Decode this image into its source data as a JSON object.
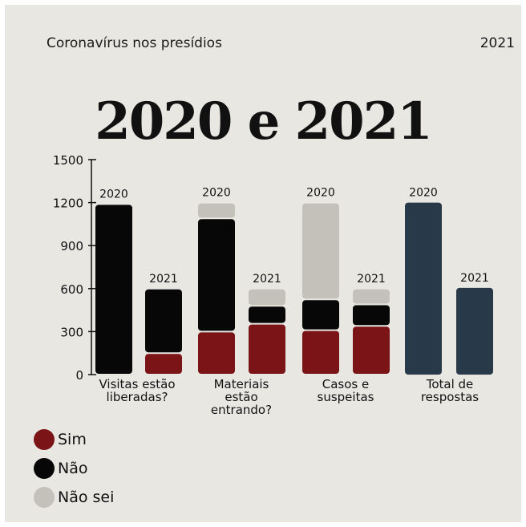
{
  "header": {
    "title": "Coronavírus nos presídios",
    "year": "2021",
    "big_title": "2020 e 2021"
  },
  "legend": [
    {
      "label": "Sim",
      "color": "#7b1416"
    },
    {
      "label": "Não",
      "color": "#070707"
    },
    {
      "label": "Não sei",
      "color": "#c4c0ba"
    }
  ],
  "chart_data": {
    "type": "bar",
    "stacked": true,
    "title": "2020 e 2021",
    "ylim": [
      0,
      1500
    ],
    "yticks": [
      0,
      300,
      600,
      900,
      1200,
      1500
    ],
    "categories": [
      "Visitas estão liberadas?",
      "Materiais estão entrando?",
      "Casos e suspeitas",
      "Total de respostas"
    ],
    "category_lines": [
      [
        "Visitas estão",
        "liberadas?"
      ],
      [
        "Materiais",
        "estão",
        "entrando?"
      ],
      [
        "Casos e",
        "suspeitas"
      ],
      [
        "Total de",
        "respostas"
      ]
    ],
    "bars": [
      {
        "category": "Visitas estão liberadas?",
        "year": "2020",
        "segments": {
          "Sim": 0,
          "Não": 1190,
          "Não sei": 0
        }
      },
      {
        "category": "Visitas estão liberadas?",
        "year": "2021",
        "segments": {
          "Sim": 150,
          "Não": 450,
          "Não sei": 0
        }
      },
      {
        "category": "Materiais estão entrando?",
        "year": "2020",
        "segments": {
          "Sim": 300,
          "Não": 790,
          "Não sei": 110
        }
      },
      {
        "category": "Materiais estão entrando?",
        "year": "2021",
        "segments": {
          "Sim": 355,
          "Não": 125,
          "Não sei": 120
        }
      },
      {
        "category": "Casos e suspeitas",
        "year": "2020",
        "segments": {
          "Sim": 310,
          "Não": 215,
          "Não sei": 675
        }
      },
      {
        "category": "Casos e suspeitas",
        "year": "2021",
        "segments": {
          "Sim": 340,
          "Não": 150,
          "Não sei": 110
        }
      },
      {
        "category": "Total de respostas",
        "year": "2020",
        "total": 1200
      },
      {
        "category": "Total de respostas",
        "year": "2021",
        "total": 605
      }
    ],
    "colors": {
      "Sim": "#7b1416",
      "Não": "#070707",
      "Não sei": "#c4c0ba",
      "Total": "#28394a"
    }
  }
}
